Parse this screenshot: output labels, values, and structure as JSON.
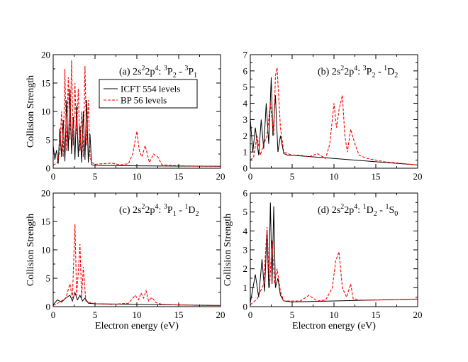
{
  "colors": {
    "icft": "#000000",
    "bp": "#ff0000",
    "axis": "#000000",
    "background": "#ffffff"
  },
  "legend": {
    "entries": [
      {
        "label": "ICFT 554 levels",
        "color": "#000000",
        "style": "solid"
      },
      {
        "label": "BP 56 levels",
        "color": "#ff0000",
        "style": "dashed"
      }
    ],
    "placement": "top-middle of panel (a)"
  },
  "chart_data": [
    {
      "panel": "a",
      "type": "line",
      "annotation": {
        "prefix": "(a)  2s",
        "parts": [
          {
            "t": "(a)  2s"
          },
          {
            "t": "2",
            "s": "sup"
          },
          {
            "t": "2p"
          },
          {
            "t": "4",
            "s": "sup"
          },
          {
            "t": ": "
          },
          {
            "t": "3",
            "s": "sup"
          },
          {
            "t": "P"
          },
          {
            "t": "2",
            "s": "sub"
          },
          {
            "t": " - "
          },
          {
            "t": "3",
            "s": "sup"
          },
          {
            "t": "P"
          },
          {
            "t": "1",
            "s": "sub"
          }
        ]
      },
      "xlabel": "",
      "ylabel": "Collision Strength",
      "xlim": [
        0,
        20
      ],
      "ylim": [
        0,
        20
      ],
      "xticks": [
        "0",
        "5",
        "10",
        "15",
        "20"
      ],
      "yticks": [
        "0",
        "5",
        "10",
        "15",
        "20"
      ],
      "grid": false,
      "series": [
        {
          "name": "ICFT 554 levels",
          "style": "solid",
          "x": [
            0,
            0.2,
            0.4,
            0.6,
            0.8,
            1.0,
            1.2,
            1.4,
            1.6,
            1.8,
            2.0,
            2.2,
            2.4,
            2.6,
            2.8,
            3.0,
            3.2,
            3.4,
            3.6,
            3.8,
            4.0,
            4.2,
            4.4,
            4.6,
            5,
            10,
            15,
            20
          ],
          "y": [
            4.0,
            1.5,
            3.2,
            0.8,
            7.0,
            2.0,
            8.5,
            1.2,
            12.0,
            3.0,
            14.0,
            2.5,
            9.0,
            1.5,
            11.0,
            2.0,
            7.5,
            1.0,
            10.0,
            1.5,
            12.0,
            1.0,
            6.0,
            0.6,
            0.5,
            0.42,
            0.38,
            0.35
          ]
        },
        {
          "name": "BP 56 levels",
          "style": "dashed",
          "x": [
            0,
            0.5,
            0.8,
            1.0,
            1.2,
            1.4,
            1.6,
            1.8,
            2.0,
            2.2,
            2.4,
            2.6,
            2.8,
            3.0,
            3.2,
            3.4,
            3.6,
            3.8,
            4.0,
            4.2,
            4.4,
            4.6,
            5.0,
            6.0,
            7.0,
            8.0,
            9.0,
            9.5,
            10.0,
            10.3,
            10.6,
            11.0,
            11.5,
            12.0,
            12.5,
            13.0,
            14.0,
            16.0,
            20.0
          ],
          "y": [
            0.5,
            1.0,
            3.0,
            10.0,
            2.0,
            17.5,
            3.0,
            16.0,
            5.0,
            19.0,
            4.0,
            15.0,
            6.0,
            14.0,
            3.0,
            10.0,
            2.0,
            18.0,
            4.0,
            12.0,
            2.0,
            1.0,
            0.7,
            0.8,
            0.9,
            0.6,
            0.8,
            2.5,
            6.5,
            3.0,
            2.0,
            4.0,
            1.0,
            2.5,
            2.0,
            0.6,
            0.5,
            0.4,
            0.35
          ]
        }
      ]
    },
    {
      "panel": "b",
      "type": "line",
      "annotation": {
        "parts": [
          {
            "t": "(b)  2s"
          },
          {
            "t": "2",
            "s": "sup"
          },
          {
            "t": "2p"
          },
          {
            "t": "4",
            "s": "sup"
          },
          {
            "t": ": "
          },
          {
            "t": "3",
            "s": "sup"
          },
          {
            "t": "P"
          },
          {
            "t": "2",
            "s": "sub"
          },
          {
            "t": " - "
          },
          {
            "t": "1",
            "s": "sup"
          },
          {
            "t": "D"
          },
          {
            "t": "2",
            "s": "sub"
          }
        ]
      },
      "xlabel": "",
      "ylabel": "",
      "xlim": [
        0,
        20
      ],
      "ylim": [
        0,
        7
      ],
      "xticks": [
        "0",
        "5",
        "10",
        "15",
        "20"
      ],
      "yticks": [
        "0",
        "1",
        "2",
        "3",
        "4",
        "5",
        "6",
        "7"
      ],
      "grid": false,
      "series": [
        {
          "name": "ICFT 554 levels",
          "style": "solid",
          "x": [
            0,
            0.3,
            0.6,
            1.0,
            1.3,
            1.6,
            1.9,
            2.2,
            2.5,
            2.7,
            3.0,
            3.3,
            3.6,
            4.0,
            4.5,
            5,
            10,
            15,
            20
          ],
          "y": [
            3.0,
            1.0,
            2.5,
            0.8,
            3.0,
            1.2,
            4.0,
            1.5,
            5.6,
            2.0,
            4.5,
            1.0,
            2.0,
            0.9,
            0.8,
            0.8,
            0.6,
            0.4,
            0.2
          ]
        },
        {
          "name": "BP 56 levels",
          "style": "dashed",
          "x": [
            0,
            0.4,
            0.8,
            1.2,
            1.6,
            2.0,
            2.4,
            2.8,
            3.0,
            3.2,
            3.6,
            4.0,
            5.0,
            6.0,
            7.0,
            8.0,
            9.0,
            9.5,
            10.0,
            10.3,
            10.6,
            11.0,
            11.3,
            11.6,
            12.0,
            12.5,
            13.0,
            14.0,
            16.0,
            18.0,
            20.0
          ],
          "y": [
            0.5,
            0.7,
            2.0,
            0.8,
            1.5,
            2.0,
            4.0,
            2.0,
            5.7,
            6.2,
            2.5,
            1.0,
            0.8,
            0.8,
            0.7,
            0.9,
            0.6,
            1.5,
            4.0,
            2.5,
            3.6,
            4.5,
            2.0,
            1.0,
            2.4,
            1.5,
            0.8,
            0.6,
            0.4,
            0.3,
            0.2
          ]
        }
      ]
    },
    {
      "panel": "c",
      "type": "line",
      "annotation": {
        "parts": [
          {
            "t": "(c)  2s"
          },
          {
            "t": "2",
            "s": "sup"
          },
          {
            "t": "2p"
          },
          {
            "t": "4",
            "s": "sup"
          },
          {
            "t": ": "
          },
          {
            "t": "3",
            "s": "sup"
          },
          {
            "t": "P"
          },
          {
            "t": "1",
            "s": "sub"
          },
          {
            "t": " - "
          },
          {
            "t": "1",
            "s": "sup"
          },
          {
            "t": "D"
          },
          {
            "t": "2",
            "s": "sub"
          }
        ]
      },
      "xlabel": "Electron energy (eV)",
      "ylabel": "Collision Strength",
      "xlim": [
        0,
        20
      ],
      "ylim": [
        0,
        20
      ],
      "xticks": [
        "0",
        "5",
        "10",
        "15",
        "20"
      ],
      "yticks": [
        "0",
        "5",
        "10",
        "15",
        "20"
      ],
      "grid": false,
      "series": [
        {
          "name": "ICFT 554 levels",
          "style": "solid",
          "x": [
            0,
            0.5,
            1.0,
            1.5,
            2.0,
            2.3,
            2.6,
            2.9,
            3.2,
            3.5,
            3.8,
            4.2,
            5,
            10,
            15,
            20
          ],
          "y": [
            0.3,
            1.2,
            0.8,
            1.5,
            2.0,
            1.0,
            2.5,
            1.2,
            2.0,
            1.0,
            1.5,
            0.6,
            0.5,
            0.4,
            0.3,
            0.2
          ]
        },
        {
          "name": "BP 56 levels",
          "style": "dashed",
          "x": [
            0,
            0.8,
            1.5,
            2.0,
            2.3,
            2.6,
            2.8,
            3.0,
            3.2,
            3.4,
            3.6,
            3.9,
            4.2,
            5.0,
            7.0,
            9.0,
            9.8,
            10.2,
            10.5,
            10.8,
            11.1,
            11.4,
            11.8,
            12.3,
            13.0,
            15.0,
            18.0,
            20.0
          ],
          "y": [
            0.2,
            0.8,
            1.5,
            4.0,
            1.5,
            14.5,
            2.0,
            6.0,
            11.0,
            1.5,
            7.0,
            1.0,
            0.8,
            0.5,
            0.4,
            0.6,
            2.0,
            1.2,
            2.4,
            1.5,
            2.8,
            1.0,
            1.6,
            0.7,
            0.4,
            0.3,
            0.2,
            0.2
          ]
        }
      ]
    },
    {
      "panel": "d",
      "type": "line",
      "annotation": {
        "parts": [
          {
            "t": "(d)  2s"
          },
          {
            "t": "2",
            "s": "sup"
          },
          {
            "t": "2p"
          },
          {
            "t": "4",
            "s": "sup"
          },
          {
            "t": ": "
          },
          {
            "t": "1",
            "s": "sup"
          },
          {
            "t": "D"
          },
          {
            "t": "2",
            "s": "sub"
          },
          {
            "t": " - "
          },
          {
            "t": "1",
            "s": "sup"
          },
          {
            "t": "S"
          },
          {
            "t": "0",
            "s": "sub"
          }
        ]
      },
      "xlabel": "Electron energy (eV)",
      "ylabel": "Collision Strength",
      "xlim": [
        0,
        20
      ],
      "ylim": [
        0,
        6
      ],
      "xticks": [
        "0",
        "5",
        "10",
        "15",
        "20"
      ],
      "yticks": [
        "0",
        "1",
        "2",
        "3",
        "4",
        "5",
        "6"
      ],
      "grid": false,
      "series": [
        {
          "name": "ICFT 554 levels",
          "style": "solid",
          "x": [
            0,
            0.6,
            1.0,
            1.4,
            1.7,
            2.0,
            2.2,
            2.4,
            2.6,
            2.8,
            3.0,
            3.3,
            3.6,
            4.0,
            5,
            10,
            15,
            20
          ],
          "y": [
            0.2,
            1.7,
            0.5,
            2.5,
            0.8,
            4.0,
            1.0,
            5.5,
            1.2,
            5.3,
            1.0,
            1.5,
            0.6,
            0.3,
            0.25,
            0.3,
            0.35,
            0.4
          ]
        },
        {
          "name": "BP 56 levels",
          "style": "dashed",
          "x": [
            0,
            0.8,
            1.2,
            1.6,
            2.0,
            2.3,
            2.6,
            2.9,
            3.2,
            3.6,
            4.0,
            5.0,
            6.0,
            7.0,
            8.0,
            9.0,
            9.8,
            10.2,
            10.6,
            11.0,
            11.5,
            12.0,
            12.3,
            12.6,
            13.0,
            15.0,
            18.0,
            20.0
          ],
          "y": [
            0.1,
            0.4,
            0.8,
            1.2,
            4.2,
            1.0,
            3.5,
            1.2,
            2.0,
            0.8,
            0.3,
            0.3,
            0.3,
            0.6,
            0.3,
            0.35,
            1.0,
            2.4,
            2.9,
            1.0,
            0.5,
            1.2,
            0.4,
            0.4,
            0.35,
            0.35,
            0.38,
            0.4
          ]
        }
      ]
    }
  ]
}
